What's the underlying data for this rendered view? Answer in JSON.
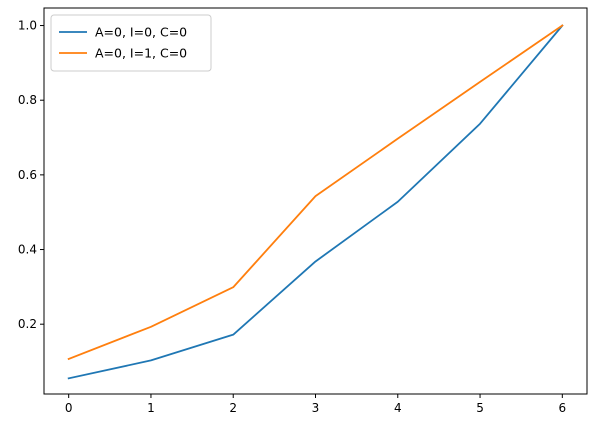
{
  "chart_data": {
    "type": "line",
    "title": "",
    "xlabel": "",
    "ylabel": "",
    "x": [
      0,
      1,
      2,
      3,
      4,
      5,
      6
    ],
    "xlim": [
      -0.3,
      6.3
    ],
    "ylim": [
      0.013,
      1.047
    ],
    "x_ticks": [
      0,
      1,
      2,
      3,
      4,
      5,
      6
    ],
    "x_tick_labels": [
      "0",
      "1",
      "2",
      "3",
      "4",
      "5",
      "6"
    ],
    "y_ticks": [
      0.2,
      0.4,
      0.6,
      0.8,
      1.0
    ],
    "y_tick_labels": [
      "0.2",
      "0.4",
      "0.6",
      "0.8",
      "1.0"
    ],
    "grid": false,
    "legend_position": "top-left",
    "series": [
      {
        "name": "A=0, I=0, C=0",
        "color": "#1f77b4",
        "values": [
          0.055,
          0.103,
          0.172,
          0.368,
          0.528,
          0.737,
          1.0
        ]
      },
      {
        "name": "A=0, I=1, C=0",
        "color": "#ff7f0e",
        "values": [
          0.107,
          0.193,
          0.299,
          0.543,
          0.697,
          0.849,
          1.0
        ]
      }
    ]
  }
}
